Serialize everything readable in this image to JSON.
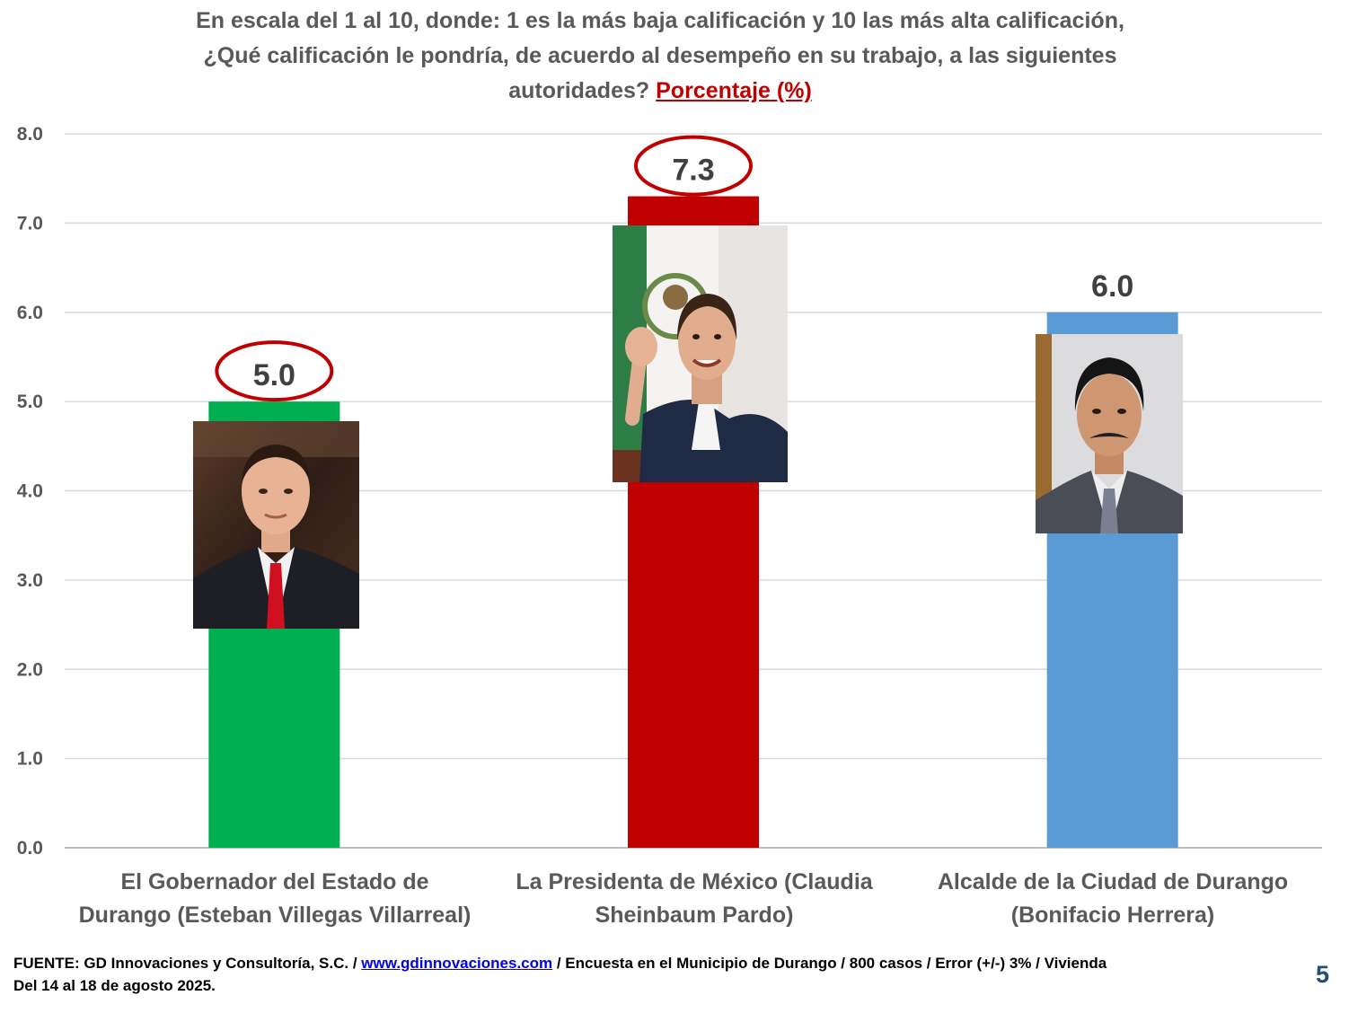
{
  "header": {
    "line1": "En escala del 1 al 10, donde: 1 es la más baja calificación y 10 las más alta calificación,",
    "line2": "¿Qué calificación le pondría, de acuerdo al desempeño en su trabajo, a las siguientes",
    "line3": "autoridades?",
    "highlight": "Porcentaje (%)"
  },
  "chart_data": {
    "type": "bar",
    "title": "En escala del 1 al 10, donde: 1 es la más baja calificación y 10 las más alta calificación, ¿Qué calificación le pondría, de acuerdo al desempeño en su trabajo, a las siguientes autoridades? Porcentaje (%)",
    "categories": [
      [
        "El Gobernador del Estado de",
        "Durango (Esteban Villegas Villarreal)"
      ],
      [
        "La Presidenta de México (Claudia",
        "Sheinbaum Pardo)"
      ],
      [
        "Alcalde de la Ciudad de Durango",
        "(Bonifacio Herrera)"
      ]
    ],
    "values": [
      5.0,
      7.3,
      6.0
    ],
    "value_labels": [
      "5.0",
      "7.3",
      "6.0"
    ],
    "bar_colors": [
      "#00b050",
      "#c00000",
      "#5b9bd5"
    ],
    "circled_labels": [
      true,
      true,
      false
    ],
    "circle_color": "#c00000",
    "ylim": [
      0,
      8
    ],
    "yticks": [
      "0.0",
      "1.0",
      "2.0",
      "3.0",
      "4.0",
      "5.0",
      "6.0",
      "7.0",
      "8.0"
    ],
    "grid": true,
    "legend": "none",
    "xlabel": "",
    "ylabel": ""
  },
  "photos": [
    {
      "name": "photo-governor",
      "icon": "portrait-man-dark-suit-red-tie"
    },
    {
      "name": "photo-president",
      "icon": "portrait-woman-waving-mexican-flag"
    },
    {
      "name": "photo-mayor",
      "icon": "portrait-man-mustache-grey-suit"
    }
  ],
  "footer": {
    "source_prefix": "FUENTE: GD Innovaciones y Consultoría, S.C. / ",
    "link_text": "www.gdinnovaciones.com",
    "source_suffix": " / Encuesta en el Municipio de Durango / 800 casos / Error (+/-) 3% / Vivienda",
    "dates": "Del 14 al 18 de agosto 2025."
  },
  "page_number": "5"
}
